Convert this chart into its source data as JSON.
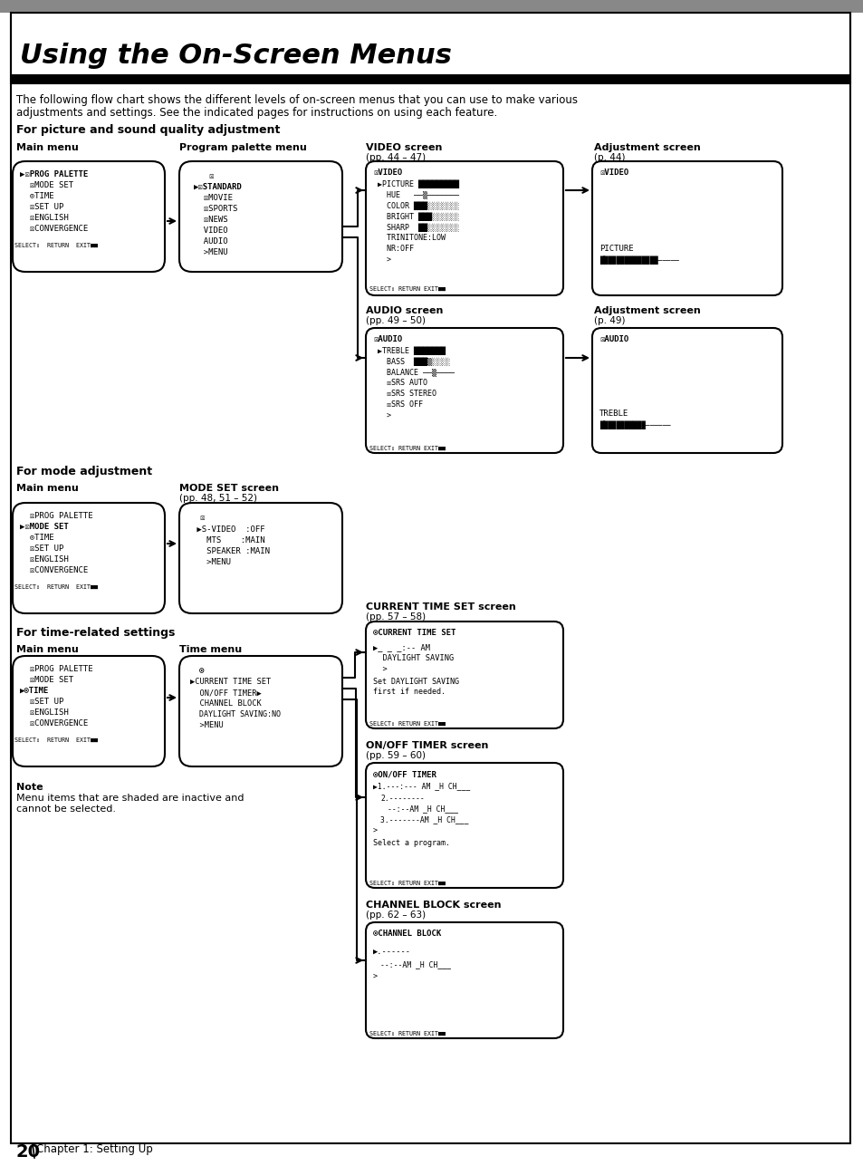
{
  "bg_color": "#ffffff",
  "title": "Using the On-Screen Menus",
  "body_text1": "The following flow chart shows the different levels of on-screen menus that you can use to make various",
  "body_text2": "adjustments and settings. See the indicated pages for instructions on using each feature.",
  "section1": "For picture and sound quality adjustment",
  "section2": "For mode adjustment",
  "section3": "For time-related settings",
  "note_title": "Note",
  "note_text1": "Menu items that are shaded are inactive and",
  "note_text2": "cannot be selected.",
  "footer_num": "20",
  "footer_text": "Chapter 1: Setting Up"
}
